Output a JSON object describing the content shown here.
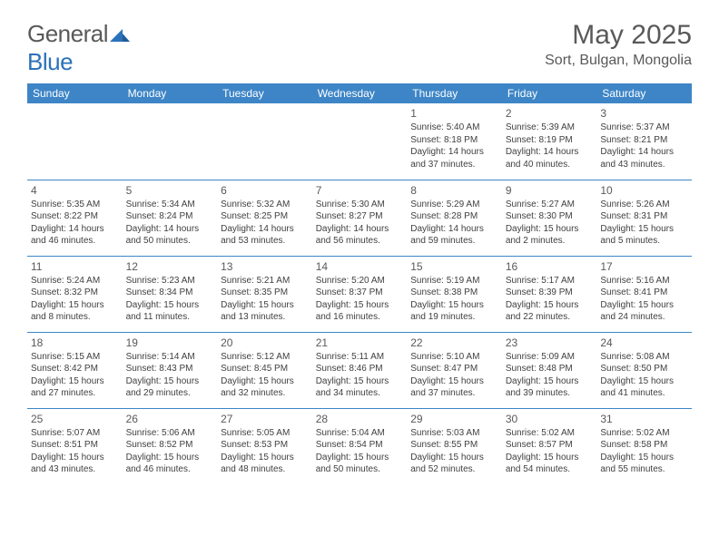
{
  "brand": {
    "part1": "General",
    "part2": "Blue"
  },
  "title": "May 2025",
  "location": "Sort, Bulgan, Mongolia",
  "weekday_headers": [
    "Sunday",
    "Monday",
    "Tuesday",
    "Wednesday",
    "Thursday",
    "Friday",
    "Saturday"
  ],
  "colors": {
    "header_bg": "#3d85c6",
    "header_text": "#ffffff",
    "title_text": "#595959",
    "body_text": "#404040",
    "cell_border": "#3d85c6"
  },
  "weeks": [
    [
      null,
      null,
      null,
      null,
      {
        "n": "1",
        "sr": "Sunrise: 5:40 AM",
        "ss": "Sunset: 8:18 PM",
        "dl": "Daylight: 14 hours and 37 minutes."
      },
      {
        "n": "2",
        "sr": "Sunrise: 5:39 AM",
        "ss": "Sunset: 8:19 PM",
        "dl": "Daylight: 14 hours and 40 minutes."
      },
      {
        "n": "3",
        "sr": "Sunrise: 5:37 AM",
        "ss": "Sunset: 8:21 PM",
        "dl": "Daylight: 14 hours and 43 minutes."
      }
    ],
    [
      {
        "n": "4",
        "sr": "Sunrise: 5:35 AM",
        "ss": "Sunset: 8:22 PM",
        "dl": "Daylight: 14 hours and 46 minutes."
      },
      {
        "n": "5",
        "sr": "Sunrise: 5:34 AM",
        "ss": "Sunset: 8:24 PM",
        "dl": "Daylight: 14 hours and 50 minutes."
      },
      {
        "n": "6",
        "sr": "Sunrise: 5:32 AM",
        "ss": "Sunset: 8:25 PM",
        "dl": "Daylight: 14 hours and 53 minutes."
      },
      {
        "n": "7",
        "sr": "Sunrise: 5:30 AM",
        "ss": "Sunset: 8:27 PM",
        "dl": "Daylight: 14 hours and 56 minutes."
      },
      {
        "n": "8",
        "sr": "Sunrise: 5:29 AM",
        "ss": "Sunset: 8:28 PM",
        "dl": "Daylight: 14 hours and 59 minutes."
      },
      {
        "n": "9",
        "sr": "Sunrise: 5:27 AM",
        "ss": "Sunset: 8:30 PM",
        "dl": "Daylight: 15 hours and 2 minutes."
      },
      {
        "n": "10",
        "sr": "Sunrise: 5:26 AM",
        "ss": "Sunset: 8:31 PM",
        "dl": "Daylight: 15 hours and 5 minutes."
      }
    ],
    [
      {
        "n": "11",
        "sr": "Sunrise: 5:24 AM",
        "ss": "Sunset: 8:32 PM",
        "dl": "Daylight: 15 hours and 8 minutes."
      },
      {
        "n": "12",
        "sr": "Sunrise: 5:23 AM",
        "ss": "Sunset: 8:34 PM",
        "dl": "Daylight: 15 hours and 11 minutes."
      },
      {
        "n": "13",
        "sr": "Sunrise: 5:21 AM",
        "ss": "Sunset: 8:35 PM",
        "dl": "Daylight: 15 hours and 13 minutes."
      },
      {
        "n": "14",
        "sr": "Sunrise: 5:20 AM",
        "ss": "Sunset: 8:37 PM",
        "dl": "Daylight: 15 hours and 16 minutes."
      },
      {
        "n": "15",
        "sr": "Sunrise: 5:19 AM",
        "ss": "Sunset: 8:38 PM",
        "dl": "Daylight: 15 hours and 19 minutes."
      },
      {
        "n": "16",
        "sr": "Sunrise: 5:17 AM",
        "ss": "Sunset: 8:39 PM",
        "dl": "Daylight: 15 hours and 22 minutes."
      },
      {
        "n": "17",
        "sr": "Sunrise: 5:16 AM",
        "ss": "Sunset: 8:41 PM",
        "dl": "Daylight: 15 hours and 24 minutes."
      }
    ],
    [
      {
        "n": "18",
        "sr": "Sunrise: 5:15 AM",
        "ss": "Sunset: 8:42 PM",
        "dl": "Daylight: 15 hours and 27 minutes."
      },
      {
        "n": "19",
        "sr": "Sunrise: 5:14 AM",
        "ss": "Sunset: 8:43 PM",
        "dl": "Daylight: 15 hours and 29 minutes."
      },
      {
        "n": "20",
        "sr": "Sunrise: 5:12 AM",
        "ss": "Sunset: 8:45 PM",
        "dl": "Daylight: 15 hours and 32 minutes."
      },
      {
        "n": "21",
        "sr": "Sunrise: 5:11 AM",
        "ss": "Sunset: 8:46 PM",
        "dl": "Daylight: 15 hours and 34 minutes."
      },
      {
        "n": "22",
        "sr": "Sunrise: 5:10 AM",
        "ss": "Sunset: 8:47 PM",
        "dl": "Daylight: 15 hours and 37 minutes."
      },
      {
        "n": "23",
        "sr": "Sunrise: 5:09 AM",
        "ss": "Sunset: 8:48 PM",
        "dl": "Daylight: 15 hours and 39 minutes."
      },
      {
        "n": "24",
        "sr": "Sunrise: 5:08 AM",
        "ss": "Sunset: 8:50 PM",
        "dl": "Daylight: 15 hours and 41 minutes."
      }
    ],
    [
      {
        "n": "25",
        "sr": "Sunrise: 5:07 AM",
        "ss": "Sunset: 8:51 PM",
        "dl": "Daylight: 15 hours and 43 minutes."
      },
      {
        "n": "26",
        "sr": "Sunrise: 5:06 AM",
        "ss": "Sunset: 8:52 PM",
        "dl": "Daylight: 15 hours and 46 minutes."
      },
      {
        "n": "27",
        "sr": "Sunrise: 5:05 AM",
        "ss": "Sunset: 8:53 PM",
        "dl": "Daylight: 15 hours and 48 minutes."
      },
      {
        "n": "28",
        "sr": "Sunrise: 5:04 AM",
        "ss": "Sunset: 8:54 PM",
        "dl": "Daylight: 15 hours and 50 minutes."
      },
      {
        "n": "29",
        "sr": "Sunrise: 5:03 AM",
        "ss": "Sunset: 8:55 PM",
        "dl": "Daylight: 15 hours and 52 minutes."
      },
      {
        "n": "30",
        "sr": "Sunrise: 5:02 AM",
        "ss": "Sunset: 8:57 PM",
        "dl": "Daylight: 15 hours and 54 minutes."
      },
      {
        "n": "31",
        "sr": "Sunrise: 5:02 AM",
        "ss": "Sunset: 8:58 PM",
        "dl": "Daylight: 15 hours and 55 minutes."
      }
    ]
  ]
}
